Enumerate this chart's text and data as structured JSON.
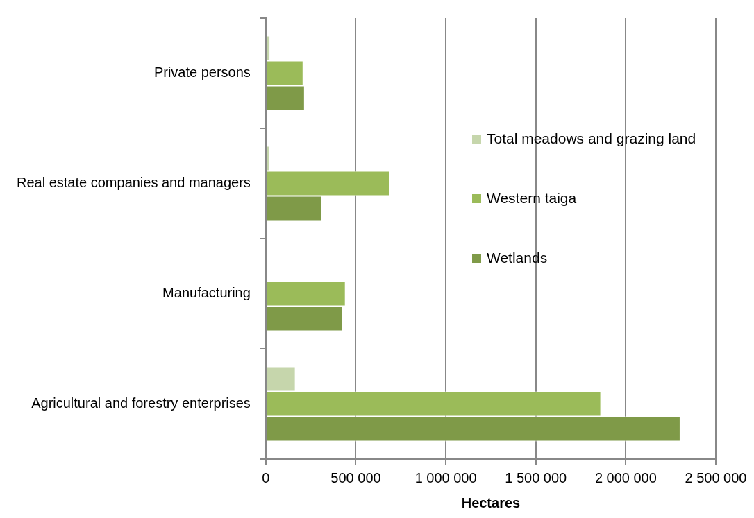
{
  "chart_data": {
    "type": "bar",
    "orientation": "horizontal",
    "xlabel": "Hectares",
    "categories": [
      "Private persons",
      "Real estate companies and managers",
      "Manufacturing",
      "Agricultural and forestry enterprises"
    ],
    "series": [
      {
        "name": "Total meadows and grazing land",
        "color": "#c6d6ac",
        "values": [
          24000,
          20000,
          0,
          165000
        ]
      },
      {
        "name": "Western taiga",
        "color": "#9bbb59",
        "values": [
          208000,
          689000,
          443000,
          1862000
        ]
      },
      {
        "name": "Wetlands",
        "color": "#7f9a48",
        "values": [
          216000,
          311000,
          426000,
          2303000
        ]
      }
    ],
    "xlim": [
      0,
      2500000
    ],
    "xticks": [
      {
        "value": 0,
        "label": "0"
      },
      {
        "value": 500000,
        "label": "500 000"
      },
      {
        "value": 1000000,
        "label": "1 000 000"
      },
      {
        "value": 1500000,
        "label": "1 500 000"
      },
      {
        "value": 2000000,
        "label": "2 000 000"
      },
      {
        "value": 2500000,
        "label": "2 500 000"
      }
    ],
    "grid": "x",
    "legend": "right"
  }
}
